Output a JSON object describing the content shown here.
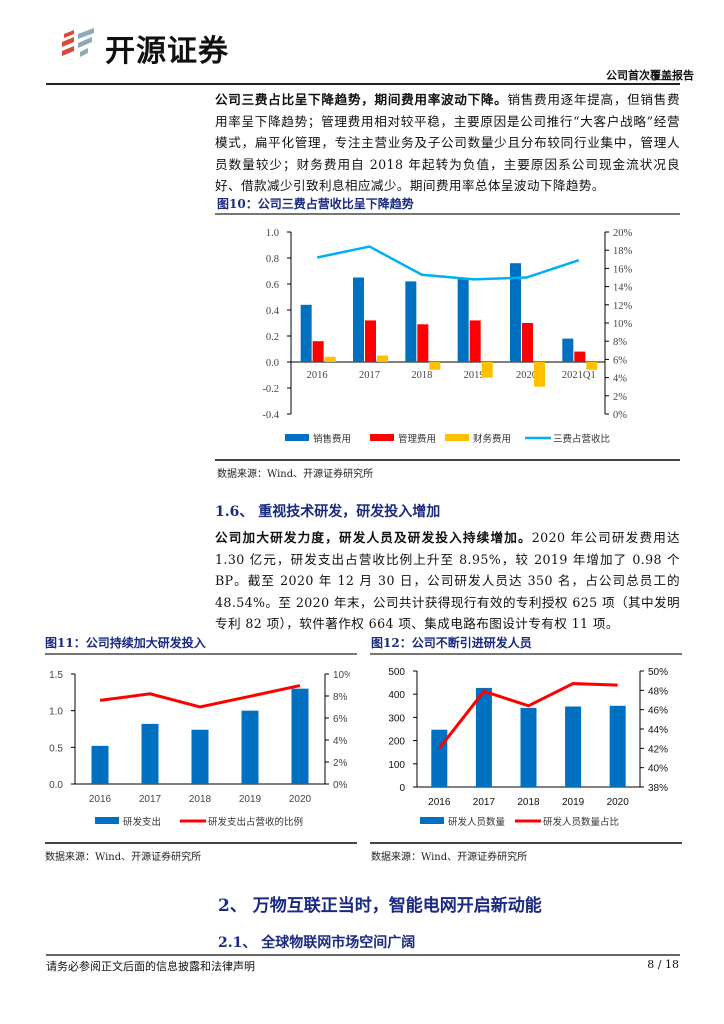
{
  "header": {
    "logo_text": "开源证券",
    "report_type": "公司首次覆盖报告"
  },
  "para1": {
    "bold": "公司三费占比呈下降趋势，期间费用率波动下降。",
    "text": "销售费用逐年提高，但销售费用率呈下降趋势；管理费用相对较平稳，主要原因是公司推行“大客户战略”经营模式，扁平化管理，专注主营业务及子公司数量少且分布较同行业集中，管理人员数量较少；财务费用自 2018 年起转为负值，主要原因系公司现金流状况良好、借款减少引致利息相应减少。期间费用率总体呈波动下降趋势。"
  },
  "fig10": {
    "title": "图10：公司三费占营收比呈下降趋势",
    "source": "数据来源：Wind、开源证券研究所"
  },
  "section16": {
    "title": "1.6、 重视技术研发，研发投入增加"
  },
  "para2": {
    "bold": "公司加大研发力度，研发人员及研发投入持续增加。",
    "text": "2020 年公司研发费用达 1.30 亿元，研发支出占营收比例上升至 8.95%，较 2019 年增加了 0.98 个 BP。截至 2020 年 12 月 30 日，公司研发人员达 350 名，占公司总员工的 48.54%。至 2020 年末，公司共计获得现行有效的专利授权 625 项（其中发明专利 82 项），软件著作权 664 项、集成电路布图设计专有权 11 项。"
  },
  "fig11": {
    "title": "图11：公司持续加大研发投入",
    "source": "数据来源：Wind、开源证券研究所"
  },
  "fig12": {
    "title": "图12：公司不断引进研发人员",
    "source": "数据来源：Wind、开源证券研究所"
  },
  "section2": {
    "title": "2、 万物互联正当时，智能电网开启新动能"
  },
  "section21": {
    "title": "2.1、 全球物联网市场空间广阔"
  },
  "footer": {
    "disclaimer": "请务必参阅正文后面的信息披露和法律声明",
    "page": "8 / 18"
  },
  "chart_data": [
    {
      "type": "bar",
      "categories": [
        "2016",
        "2017",
        "2018",
        "2019",
        "2020",
        "2021Q1"
      ],
      "series": [
        {
          "name": "销售费用",
          "kind": "bar",
          "axis": "left",
          "color": "#0070C0",
          "values": [
            0.44,
            0.65,
            0.62,
            0.64,
            0.76,
            0.18
          ]
        },
        {
          "name": "管理费用",
          "kind": "bar",
          "axis": "left",
          "color": "#FF0000",
          "values": [
            0.16,
            0.32,
            0.29,
            0.32,
            0.3,
            0.08
          ]
        },
        {
          "name": "财务费用",
          "kind": "bar",
          "axis": "left",
          "color": "#FFC000",
          "values": [
            0.04,
            0.05,
            -0.06,
            -0.12,
            -0.19,
            -0.06
          ]
        },
        {
          "name": "三费占营收比",
          "kind": "line",
          "axis": "right",
          "color": "#00B0F0",
          "values": [
            17.2,
            18.4,
            15.3,
            14.8,
            15.0,
            16.9
          ]
        }
      ],
      "ylim": [
        -0.4,
        1.0
      ],
      "yticks": [
        "1.0",
        "0.8",
        "0.6",
        "0.4",
        "0.2",
        "0.0",
        "-0.2",
        "-0.4"
      ],
      "y2lim": [
        0,
        20
      ],
      "y2ticks": [
        "20%",
        "18%",
        "16%",
        "14%",
        "12%",
        "10%",
        "8%",
        "6%",
        "4%",
        "2%",
        "0%"
      ],
      "legend": "bottom",
      "grid": false
    },
    {
      "type": "bar",
      "categories": [
        "2016",
        "2017",
        "2018",
        "2019",
        "2020"
      ],
      "series": [
        {
          "name": "研发支出",
          "kind": "bar",
          "axis": "left",
          "color": "#0070C0",
          "values": [
            0.52,
            0.82,
            0.74,
            1.0,
            1.3
          ]
        },
        {
          "name": "研发支出占营收的比例",
          "kind": "line",
          "axis": "right",
          "color": "#FF0000",
          "values": [
            7.6,
            8.2,
            7.0,
            7.97,
            8.95
          ]
        }
      ],
      "ylim": [
        0,
        1.5
      ],
      "yticks": [
        "1.5",
        "1.0",
        "0.5",
        "0.0"
      ],
      "y2lim": [
        0,
        10
      ],
      "y2ticks": [
        "10%",
        "8%",
        "6%",
        "4%",
        "2%",
        "0%"
      ],
      "legend": "bottom",
      "grid": false
    },
    {
      "type": "bar",
      "categories": [
        "2016",
        "2017",
        "2018",
        "2019",
        "2020"
      ],
      "series": [
        {
          "name": "研发人员数量",
          "kind": "bar",
          "axis": "left",
          "color": "#0070C0",
          "values": [
            247,
            427,
            341,
            347,
            350
          ]
        },
        {
          "name": "研发人员数量占比",
          "kind": "line",
          "axis": "right",
          "color": "#FF0000",
          "values": [
            42.0,
            47.9,
            46.4,
            48.7,
            48.54
          ]
        }
      ],
      "ylim": [
        0,
        500
      ],
      "yticks": [
        "500",
        "400",
        "300",
        "200",
        "100",
        "0"
      ],
      "y2lim": [
        38,
        50
      ],
      "y2ticks": [
        "50%",
        "48%",
        "46%",
        "44%",
        "42%",
        "40%",
        "38%"
      ],
      "legend": "bottom",
      "grid": false
    }
  ]
}
